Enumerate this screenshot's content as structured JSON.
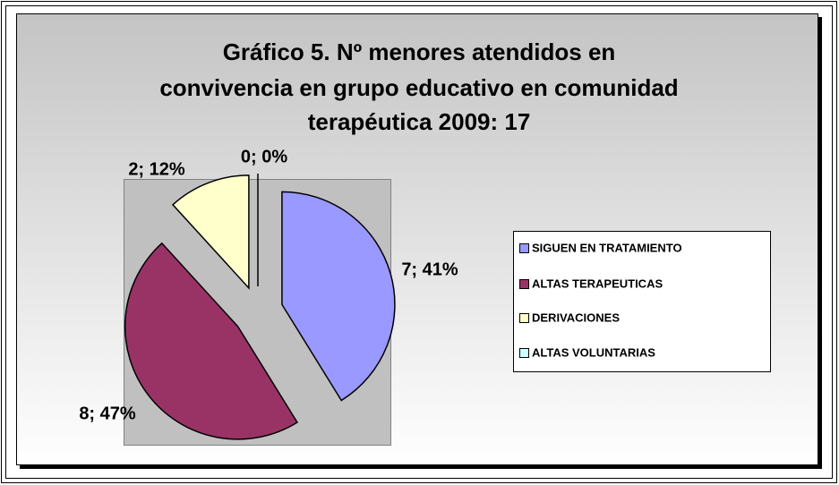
{
  "chart_data": {
    "type": "pie",
    "title": "Gráfico 5. Nº menores atendidos en convivencia en grupo educativo en comunidad terapéutica 2009: 17",
    "categories": [
      "SIGUEN EN TRATAMIENTO",
      "ALTAS TERAPEUTICAS",
      "DERIVACIONES",
      "ALTAS VOLUNTARIAS"
    ],
    "values": [
      7,
      8,
      2,
      0
    ],
    "value_labels": [
      "7; 41%",
      "8; 47%",
      "2; 12%",
      "0; 0%"
    ],
    "colors": [
      "#9999ff",
      "#993366",
      "#ffffcc",
      "#ccffff"
    ],
    "legend": "right"
  }
}
